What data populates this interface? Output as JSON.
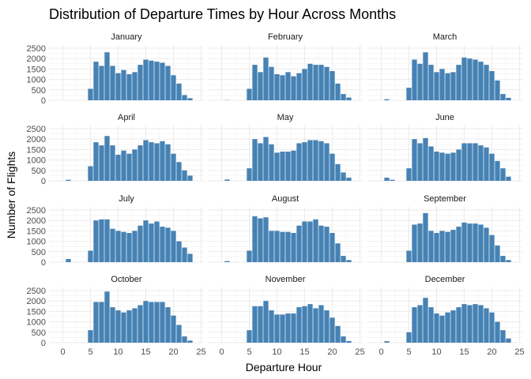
{
  "chart_data": {
    "type": "bar",
    "title": "Distribution of Departure Times by Hour Across Months",
    "xlabel": "Departure Hour",
    "ylabel": "Number of Flights",
    "xlim": [
      -2.5,
      25.5
    ],
    "ylim": [
      0,
      2650
    ],
    "x_ticks": [
      0,
      5,
      10,
      15,
      20,
      25
    ],
    "y_ticks": [
      0,
      500,
      1000,
      1500,
      2000,
      2500
    ],
    "grid": true,
    "bar_color": "#4682B4",
    "hours": [
      0,
      1,
      2,
      3,
      4,
      5,
      6,
      7,
      8,
      9,
      10,
      11,
      12,
      13,
      14,
      15,
      16,
      17,
      18,
      19,
      20,
      21,
      22,
      23
    ],
    "panels": [
      {
        "month": "January",
        "values": [
          0,
          0,
          0,
          0,
          0,
          550,
          1850,
          1650,
          2300,
          1650,
          1300,
          1450,
          1250,
          1350,
          1700,
          1950,
          1900,
          1850,
          1800,
          1650,
          1200,
          800,
          250,
          100
        ]
      },
      {
        "month": "February",
        "values": [
          0,
          10,
          0,
          0,
          0,
          550,
          1700,
          1350,
          2050,
          1600,
          1250,
          1200,
          1350,
          1150,
          1300,
          1500,
          1750,
          1700,
          1700,
          1600,
          1400,
          800,
          300,
          130
        ]
      },
      {
        "month": "March",
        "values": [
          0,
          50,
          0,
          0,
          0,
          600,
          1950,
          1750,
          2300,
          1700,
          1350,
          1500,
          1300,
          1350,
          1700,
          2050,
          2000,
          1950,
          1850,
          1700,
          1400,
          950,
          300,
          120
        ]
      },
      {
        "month": "April",
        "values": [
          0,
          50,
          0,
          0,
          0,
          700,
          1850,
          1700,
          2150,
          1700,
          1250,
          1450,
          1300,
          1500,
          1700,
          1950,
          1850,
          1800,
          1900,
          1750,
          1300,
          900,
          500,
          250
        ]
      },
      {
        "month": "May",
        "values": [
          0,
          60,
          0,
          0,
          0,
          600,
          2000,
          1800,
          2100,
          1750,
          1350,
          1400,
          1400,
          1450,
          1800,
          1850,
          1950,
          1950,
          1900,
          1800,
          1300,
          800,
          400,
          150
        ]
      },
      {
        "month": "June",
        "values": [
          0,
          150,
          50,
          0,
          0,
          600,
          2000,
          1800,
          2050,
          1650,
          1400,
          1350,
          1300,
          1350,
          1500,
          1800,
          1800,
          1800,
          1700,
          1600,
          1300,
          950,
          600,
          200
        ]
      },
      {
        "month": "July",
        "values": [
          0,
          150,
          0,
          0,
          0,
          550,
          2000,
          2050,
          2050,
          1600,
          1500,
          1450,
          1400,
          1500,
          1750,
          2000,
          1850,
          1950,
          1700,
          1650,
          1500,
          1000,
          700,
          400
        ]
      },
      {
        "month": "August",
        "values": [
          0,
          50,
          0,
          0,
          0,
          550,
          2200,
          2100,
          2150,
          1500,
          1500,
          1450,
          1450,
          1400,
          1750,
          1950,
          1950,
          2050,
          1750,
          1700,
          1400,
          900,
          300,
          100
        ]
      },
      {
        "month": "September",
        "values": [
          0,
          0,
          0,
          0,
          0,
          550,
          1800,
          1850,
          2350,
          1500,
          1400,
          1500,
          1450,
          1550,
          1700,
          1900,
          1850,
          1850,
          1800,
          1650,
          1300,
          800,
          300,
          100
        ]
      },
      {
        "month": "October",
        "values": [
          0,
          0,
          0,
          0,
          0,
          600,
          1950,
          1950,
          2450,
          1700,
          1550,
          1450,
          1550,
          1650,
          1800,
          2000,
          1950,
          1950,
          1950,
          1700,
          1300,
          850,
          300,
          100
        ]
      },
      {
        "month": "November",
        "values": [
          0,
          0,
          0,
          0,
          0,
          600,
          1750,
          1750,
          2000,
          1550,
          1350,
          1350,
          1400,
          1400,
          1700,
          1750,
          1850,
          1650,
          1800,
          1550,
          1200,
          800,
          300,
          80
        ]
      },
      {
        "month": "December",
        "values": [
          0,
          70,
          0,
          0,
          0,
          500,
          1700,
          1800,
          2150,
          1700,
          1400,
          1300,
          1450,
          1550,
          1700,
          1850,
          1800,
          1850,
          1800,
          1650,
          1450,
          1000,
          600,
          200
        ]
      }
    ]
  }
}
